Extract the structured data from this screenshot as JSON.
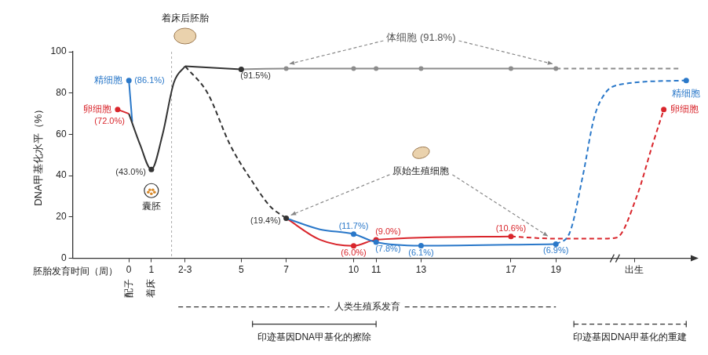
{
  "chart_data": {
    "type": "line",
    "x_label": "胚胎发育时间（周）",
    "y_label": "DNA甲基化水平（%）",
    "xlim": [
      -2.5,
      25
    ],
    "xticks": [
      0,
      1,
      {
        "value": 2.5,
        "label": "2-3"
      },
      5,
      7,
      10,
      11,
      13,
      17,
      19,
      {
        "value": 22.5,
        "label": "出生"
      }
    ],
    "ylim": [
      0,
      100
    ],
    "yticks": [
      0,
      20,
      40,
      60,
      80,
      100
    ],
    "grid": false,
    "data_labels": true,
    "series": [
      {
        "name": "原始生殖细胞",
        "color": "#333333",
        "line_style": "dashed",
        "x": [
          2.5,
          3.5,
          4.5,
          5.5,
          6.3,
          7
        ],
        "values": [
          93,
          80,
          55,
          37,
          25,
          19.4
        ],
        "value_labels": [
          null,
          null,
          null,
          null,
          null,
          "(19.4%)"
        ]
      },
      {
        "name": "囊胚",
        "color": "#333333",
        "line_style": "solid",
        "x": [
          0,
          0.5,
          1,
          1.5,
          2,
          2.5
        ],
        "values": [
          70,
          55,
          43.0,
          60,
          85,
          93
        ],
        "value_labels": [
          null,
          null,
          "(43.0%)",
          null,
          null,
          null
        ]
      },
      {
        "name": "着床后胚胎",
        "color": "#333333",
        "line_style": "solid",
        "x": [
          2.5,
          5
        ],
        "values": [
          93,
          91.5
        ],
        "value_labels": [
          null,
          "(91.5%)"
        ]
      },
      {
        "name": "精细胞",
        "color": "#2a78c9",
        "line_style": "solid",
        "x": [
          0,
          0.15
        ],
        "values": [
          86.1,
          66
        ],
        "value_labels": [
          "(86.1%)",
          null
        ]
      },
      {
        "name": "卵细胞",
        "color": "#d9262c",
        "line_style": "solid",
        "x": [
          -0.5,
          0
        ],
        "values": [
          72.0,
          70
        ],
        "value_labels": [
          "(72.0%)",
          null
        ]
      },
      {
        "name": "精细胞",
        "color": "#2a78c9",
        "line_style": "solid",
        "x": [
          7,
          8.5,
          10,
          11,
          13,
          19
        ],
        "values": [
          19.4,
          14,
          11.7,
          7.8,
          6.1,
          6.9
        ],
        "value_labels": [
          null,
          null,
          "(11.7%)",
          "(7.8%)",
          "(6.1%)",
          "(6.9%)"
        ]
      },
      {
        "name": "卵细胞",
        "color": "#d9262c",
        "line_style": "solid",
        "x": [
          7,
          8.5,
          10,
          11,
          17
        ],
        "values": [
          19.4,
          9,
          6.0,
          9.0,
          10.6
        ],
        "value_labels": [
          null,
          null,
          "(6.0%)",
          "(9.0%)",
          "(10.6%)"
        ]
      },
      {
        "name": "精细胞",
        "color": "#2a78c9",
        "line_style": "dashed",
        "marker": "end",
        "x": [
          19,
          19.6,
          20.2,
          20.7,
          21.2,
          21.8,
          24.8
        ],
        "values": [
          6.9,
          12,
          40,
          68,
          80,
          84,
          86.1
        ]
      },
      {
        "name": "卵细胞",
        "color": "#d9262c",
        "line_style": "dashed",
        "marker": "end",
        "x": [
          17,
          19,
          21,
          21.7,
          22.6,
          23.3,
          23.8
        ],
        "values": [
          10.6,
          9.5,
          9.5,
          10,
          30,
          55,
          72.0
        ]
      },
      {
        "name": "体细胞",
        "color": "#8c8c8c",
        "line_style": "solid",
        "marker": "circle",
        "x": [
          5,
          7,
          10,
          11,
          13,
          17,
          19
        ],
        "values": [
          91.5,
          91.8,
          91.8,
          91.8,
          91.8,
          91.8,
          91.8
        ]
      },
      {
        "name": "体细胞",
        "color": "#8c8c8c",
        "line_style": "dashed",
        "x": [
          19,
          24.5
        ],
        "values": [
          91.8,
          91.8
        ]
      }
    ],
    "texts": {
      "embryo": "着床后胚胎",
      "somatic": "体细胞 (91.8%)",
      "pgc": "原始生殖细胞",
      "blastocyst": "囊胚",
      "sperm": "精细胞",
      "egg": "卵细胞"
    },
    "tick_notes": [
      {
        "x": 0,
        "label": "配子"
      },
      {
        "x": 1,
        "label": "着床"
      }
    ],
    "spans": [
      {
        "label": "人类生殖系发育",
        "x": [
          2.2,
          19
        ],
        "line_style": "dashed"
      },
      {
        "label": "印迹基因DNA甲基化的擦除",
        "x": [
          5.5,
          11
        ],
        "line_style": "solid"
      },
      {
        "label": "印迹基因DNA甲基化的重建",
        "x": [
          19.8,
          24.8
        ],
        "line_style": "dashed"
      }
    ]
  }
}
